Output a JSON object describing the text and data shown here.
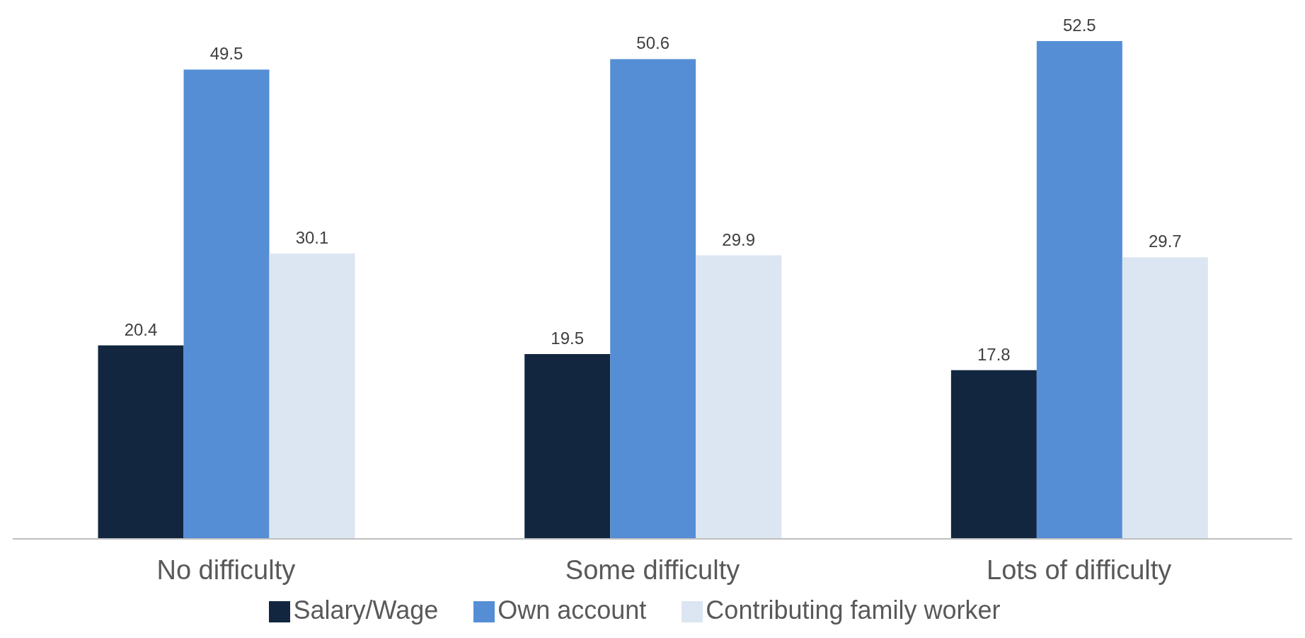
{
  "chart_data": {
    "type": "bar",
    "categories": [
      "No difficulty",
      "Some difficulty",
      "Lots of difficulty"
    ],
    "series": [
      {
        "name": "Salary/Wage",
        "color": "#12263f",
        "values": [
          20.4,
          19.5,
          17.8
        ]
      },
      {
        "name": "Own account",
        "color": "#558ed5",
        "values": [
          49.5,
          50.6,
          52.5
        ]
      },
      {
        "name": "Contributing family worker",
        "color": "#dce6f2",
        "values": [
          30.1,
          29.9,
          29.7
        ]
      }
    ],
    "data_labels": true,
    "legend": "bottom",
    "grid": false
  }
}
